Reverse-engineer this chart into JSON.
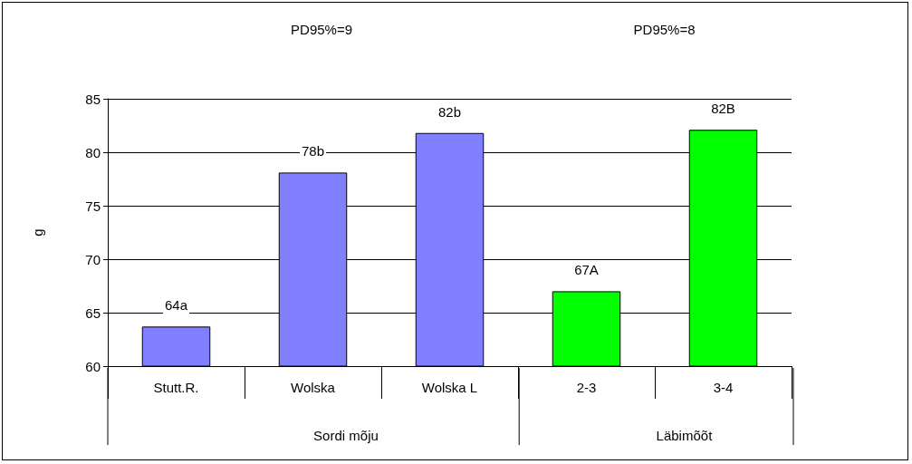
{
  "chart_data": {
    "type": "bar",
    "categories": [
      "Stutt.R.",
      "Wolska",
      "Wolska L",
      "2-3",
      "3-4"
    ],
    "values": [
      63.7,
      78.1,
      81.8,
      67.0,
      82.1
    ],
    "colors": [
      "#8080ff",
      "#8080ff",
      "#8080ff",
      "#00ff00",
      "#00ff00"
    ],
    "value_labels": [
      "64a",
      "78b",
      "82b",
      "67A",
      "82B"
    ],
    "ylabel": "g",
    "ylim": [
      60,
      85
    ],
    "yticks": [
      60,
      65,
      70,
      75,
      80,
      85
    ],
    "grid": "y",
    "annotations": [
      "PD95%=9",
      "PD95%=8",
      "Sordi mõju",
      "Läbimõõt"
    ]
  }
}
